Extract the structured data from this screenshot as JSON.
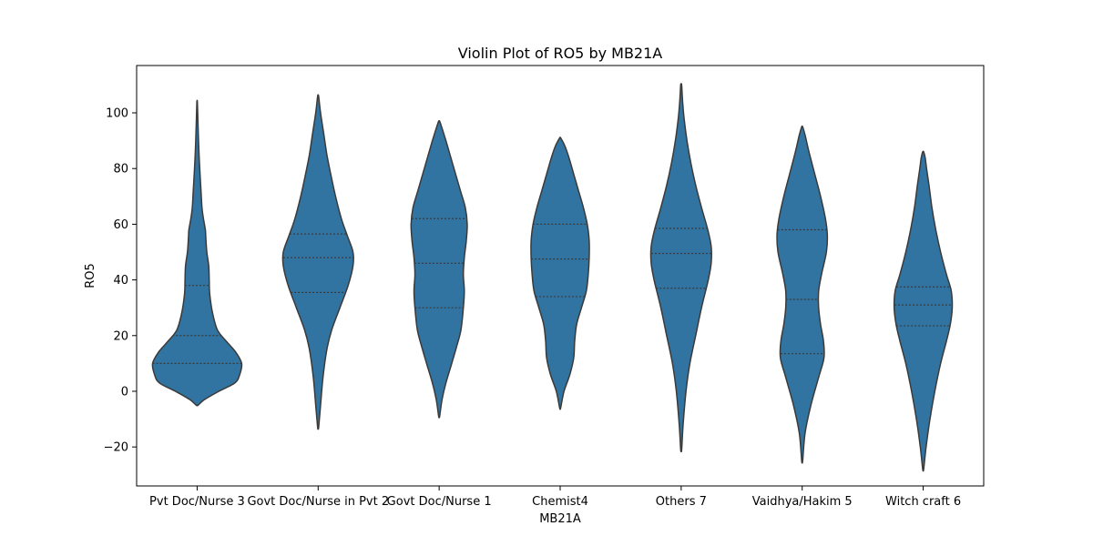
{
  "chart_data": {
    "type": "violin",
    "title": "Violin Plot of RO5 by MB21A",
    "xlabel": "MB21A",
    "ylabel": "RO5",
    "ylim": [
      -34,
      117
    ],
    "yticks": [
      -20,
      0,
      20,
      40,
      60,
      80,
      100
    ],
    "grid": false,
    "color": "#3274a1",
    "categories": [
      "Pvt Doc/Nurse 3",
      "Govt Doc/Nurse in Pvt 2",
      "Govt Doc/Nurse 1",
      "Chemist4",
      "Others 7",
      "Vaidhya/Hakim 5",
      "Witch craft 6"
    ],
    "violins": [
      {
        "min": -5,
        "max": 104,
        "quartiles": [
          10,
          20,
          38
        ],
        "profile": [
          [
            -5,
            0.02
          ],
          [
            -3,
            0.15
          ],
          [
            0,
            0.45
          ],
          [
            3,
            0.78
          ],
          [
            6,
            0.88
          ],
          [
            10,
            0.92
          ],
          [
            14,
            0.8
          ],
          [
            18,
            0.6
          ],
          [
            22,
            0.42
          ],
          [
            28,
            0.32
          ],
          [
            35,
            0.26
          ],
          [
            40,
            0.25
          ],
          [
            45,
            0.24
          ],
          [
            50,
            0.2
          ],
          [
            55,
            0.18
          ],
          [
            58,
            0.17
          ],
          [
            62,
            0.13
          ],
          [
            66,
            0.1
          ],
          [
            72,
            0.08
          ],
          [
            78,
            0.06
          ],
          [
            85,
            0.04
          ],
          [
            92,
            0.025
          ],
          [
            98,
            0.015
          ],
          [
            104,
            0.005
          ]
        ]
      },
      {
        "min": -13,
        "max": 106,
        "quartiles": [
          35.5,
          48,
          56.5
        ],
        "profile": [
          [
            -13,
            0.01
          ],
          [
            -5,
            0.05
          ],
          [
            5,
            0.1
          ],
          [
            15,
            0.18
          ],
          [
            22,
            0.28
          ],
          [
            30,
            0.45
          ],
          [
            38,
            0.62
          ],
          [
            45,
            0.72
          ],
          [
            50,
            0.72
          ],
          [
            56,
            0.6
          ],
          [
            62,
            0.48
          ],
          [
            70,
            0.36
          ],
          [
            78,
            0.26
          ],
          [
            85,
            0.18
          ],
          [
            92,
            0.12
          ],
          [
            100,
            0.05
          ],
          [
            106,
            0.01
          ]
        ]
      },
      {
        "min": -9,
        "max": 97,
        "quartiles": [
          30,
          46,
          62
        ],
        "profile": [
          [
            -9,
            0.01
          ],
          [
            -3,
            0.06
          ],
          [
            3,
            0.14
          ],
          [
            10,
            0.26
          ],
          [
            16,
            0.36
          ],
          [
            22,
            0.45
          ],
          [
            30,
            0.5
          ],
          [
            36,
            0.52
          ],
          [
            42,
            0.5
          ],
          [
            48,
            0.52
          ],
          [
            54,
            0.56
          ],
          [
            60,
            0.58
          ],
          [
            66,
            0.54
          ],
          [
            72,
            0.44
          ],
          [
            78,
            0.34
          ],
          [
            84,
            0.24
          ],
          [
            90,
            0.14
          ],
          [
            95,
            0.05
          ],
          [
            97,
            0.01
          ]
        ]
      },
      {
        "min": -6,
        "max": 91,
        "quartiles": [
          34,
          47.5,
          60
        ],
        "profile": [
          [
            -6,
            0.01
          ],
          [
            0,
            0.08
          ],
          [
            6,
            0.2
          ],
          [
            12,
            0.28
          ],
          [
            18,
            0.3
          ],
          [
            24,
            0.34
          ],
          [
            30,
            0.44
          ],
          [
            36,
            0.54
          ],
          [
            42,
            0.58
          ],
          [
            48,
            0.6
          ],
          [
            54,
            0.6
          ],
          [
            60,
            0.56
          ],
          [
            66,
            0.48
          ],
          [
            72,
            0.38
          ],
          [
            78,
            0.28
          ],
          [
            84,
            0.18
          ],
          [
            88,
            0.1
          ],
          [
            91,
            0.01
          ]
        ]
      },
      {
        "min": -21,
        "max": 110,
        "quartiles": [
          37,
          49.5,
          58.5
        ],
        "profile": [
          [
            -21,
            0.01
          ],
          [
            -12,
            0.04
          ],
          [
            0,
            0.1
          ],
          [
            10,
            0.18
          ],
          [
            20,
            0.3
          ],
          [
            30,
            0.42
          ],
          [
            40,
            0.56
          ],
          [
            46,
            0.62
          ],
          [
            52,
            0.62
          ],
          [
            58,
            0.55
          ],
          [
            66,
            0.42
          ],
          [
            74,
            0.3
          ],
          [
            82,
            0.2
          ],
          [
            90,
            0.12
          ],
          [
            98,
            0.06
          ],
          [
            104,
            0.03
          ],
          [
            110,
            0.01
          ]
        ]
      },
      {
        "min": -25,
        "max": 95,
        "quartiles": [
          13.5,
          33,
          58
        ],
        "profile": [
          [
            -25,
            0.01
          ],
          [
            -15,
            0.06
          ],
          [
            -5,
            0.18
          ],
          [
            5,
            0.34
          ],
          [
            12,
            0.45
          ],
          [
            18,
            0.44
          ],
          [
            24,
            0.38
          ],
          [
            30,
            0.34
          ],
          [
            36,
            0.34
          ],
          [
            42,
            0.4
          ],
          [
            50,
            0.5
          ],
          [
            56,
            0.52
          ],
          [
            62,
            0.48
          ],
          [
            70,
            0.38
          ],
          [
            78,
            0.26
          ],
          [
            86,
            0.14
          ],
          [
            92,
            0.06
          ],
          [
            95,
            0.01
          ]
        ]
      },
      {
        "min": -28,
        "max": 86,
        "quartiles": [
          23.5,
          31,
          37.5
        ],
        "profile": [
          [
            -28,
            0.01
          ],
          [
            -20,
            0.06
          ],
          [
            -10,
            0.14
          ],
          [
            0,
            0.24
          ],
          [
            10,
            0.36
          ],
          [
            18,
            0.48
          ],
          [
            24,
            0.56
          ],
          [
            30,
            0.6
          ],
          [
            36,
            0.58
          ],
          [
            42,
            0.48
          ],
          [
            50,
            0.36
          ],
          [
            58,
            0.26
          ],
          [
            66,
            0.18
          ],
          [
            74,
            0.12
          ],
          [
            80,
            0.07
          ],
          [
            84,
            0.04
          ],
          [
            86,
            0.01
          ]
        ]
      }
    ]
  }
}
